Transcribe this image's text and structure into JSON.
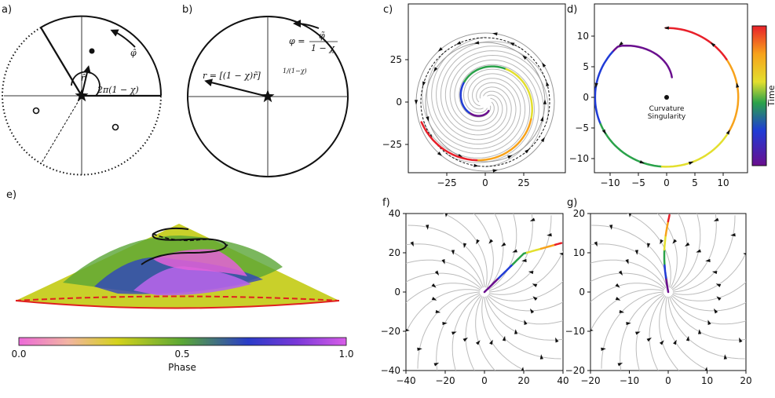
{
  "panels": {
    "a": {
      "label": "a)",
      "angle_label": "2π(1 − χ)",
      "r_hat": "r̂",
      "phi_hat": "φ̂"
    },
    "b": {
      "label": "b)",
      "r_eq": "r = [(1 − χ)r̃]",
      "r_exp": "1/(1−χ)",
      "phi_eq_lhs": "φ =",
      "phi_num": "φ̃",
      "phi_den": "1 − χ"
    },
    "c": {
      "label": "c)"
    },
    "d": {
      "label": "d)",
      "singularity_line1": "Curvature",
      "singularity_line2": "Singularity"
    },
    "e": {
      "label": "e)"
    },
    "f": {
      "label": "f)"
    },
    "g": {
      "label": "g)"
    }
  },
  "colorbars": {
    "time": {
      "label": "Time"
    },
    "phase": {
      "label": "Phase",
      "ticks": [
        "0.0",
        "0.5",
        "1.0"
      ]
    }
  },
  "chart_data": [
    {
      "panel": "c",
      "type": "line",
      "title": "",
      "xlabel": "",
      "ylabel": "",
      "xlim": [
        -42,
        42
      ],
      "ylim": [
        -42,
        42
      ],
      "xticks": [
        "−25",
        "0",
        "25"
      ],
      "yticks": [
        "25",
        "0",
        "−25"
      ],
      "series": [
        {
          "values": "outward spiral trajectory from center (~r=5) to r≈35, colored by time"
        }
      ]
    },
    {
      "panel": "d",
      "type": "line",
      "xlim": [
        -13,
        13
      ],
      "ylim": [
        -13,
        13
      ],
      "xticks": [
        "−10",
        "−5",
        "0",
        "5",
        "10"
      ],
      "yticks": [
        "10",
        "5",
        "0",
        "−5",
        "−10"
      ],
      "series": [
        {
          "values": "trajectory from (0,9.5) circling curvature singularity at radius≈12"
        }
      ]
    },
    {
      "panel": "f",
      "type": "line",
      "xlim": [
        -40,
        40
      ],
      "ylim": [
        -40,
        40
      ],
      "xticks": [
        "−40",
        "−20",
        "0",
        "20",
        "40"
      ],
      "yticks": [
        "40",
        "20",
        "0",
        "−20",
        "−40"
      ],
      "series": [
        {
          "values": "trajectory from origin to (40,20)"
        }
      ]
    },
    {
      "panel": "g",
      "type": "line",
      "xlim": [
        -20,
        20
      ],
      "ylim": [
        -20,
        20
      ],
      "xticks": [
        "−20",
        "−10",
        "0",
        "10",
        "20"
      ],
      "yticks": [
        "20",
        "10",
        "0",
        "−10",
        "−20"
      ],
      "series": [
        {
          "values": "trajectory from origin to (0,20)"
        }
      ]
    }
  ]
}
